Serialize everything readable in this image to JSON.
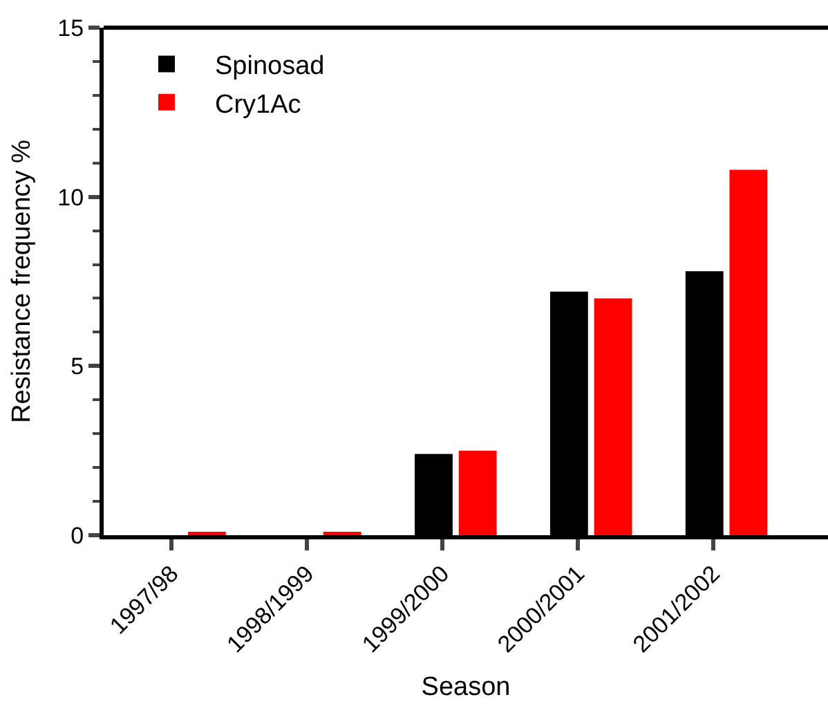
{
  "chart_data": {
    "type": "bar",
    "xlabel": "Season",
    "ylabel": "Resistance frequency %",
    "categories": [
      "1997/98",
      "1998/1999",
      "1999/2000",
      "2000/2001",
      "2001/2002"
    ],
    "series": [
      {
        "name": "Spinosad",
        "color": "#000000",
        "values": [
          0,
          0,
          2.4,
          7.2,
          7.8
        ]
      },
      {
        "name": "Cry1Ac",
        "color": "#ff0000",
        "values": [
          0.1,
          0.1,
          2.5,
          7.0,
          10.8
        ]
      }
    ],
    "ylim": [
      0,
      15
    ],
    "yticks": [
      0,
      5,
      10,
      15
    ],
    "legend": "top left"
  }
}
